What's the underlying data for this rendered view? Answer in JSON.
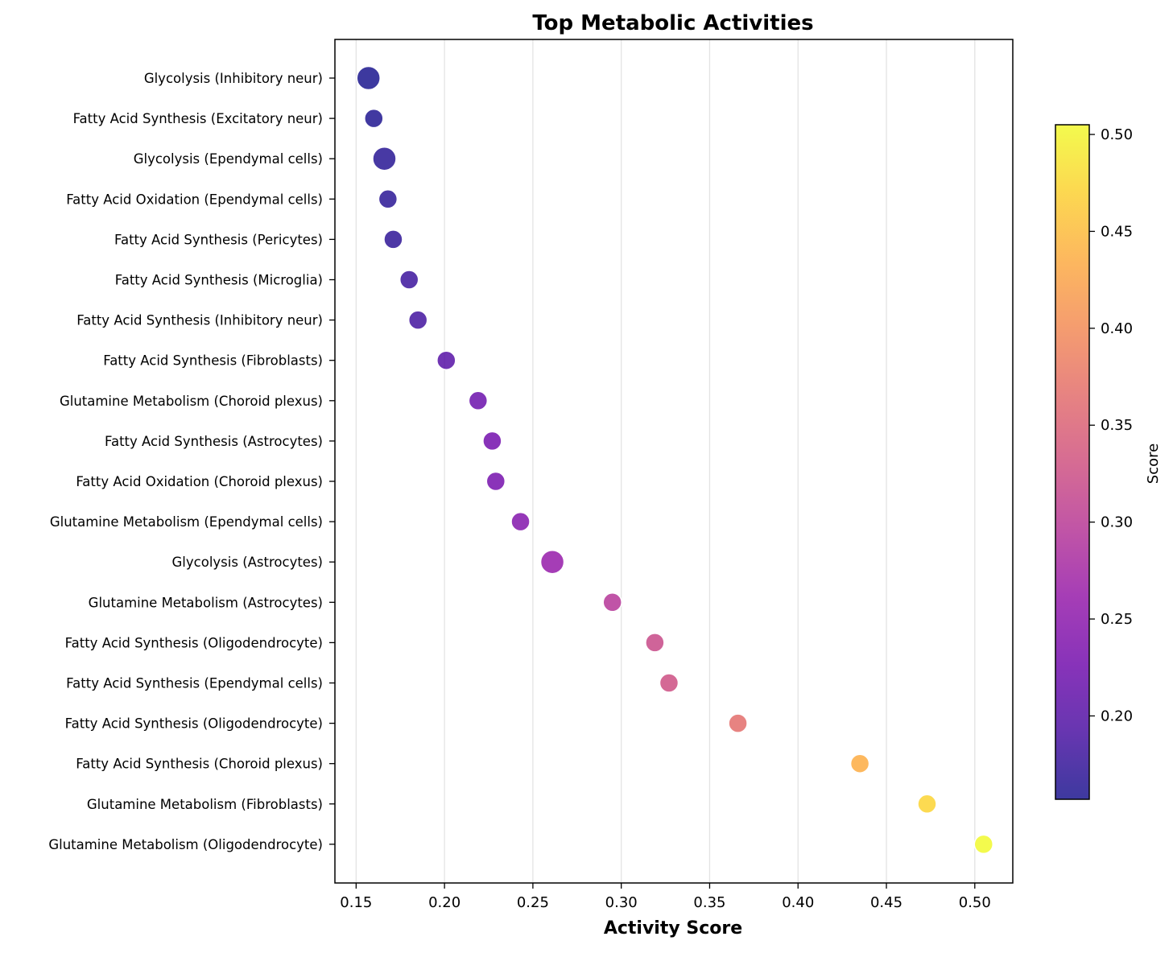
{
  "chart_data": {
    "type": "scatter",
    "title": "Top Metabolic Activities",
    "xlabel": "Activity Score",
    "xlim": [
      0.138,
      0.5215
    ],
    "xticks": [
      0.15,
      0.2,
      0.25,
      0.3,
      0.35,
      0.4,
      0.45,
      0.5
    ],
    "xtick_labels": [
      "0.15",
      "0.20",
      "0.25",
      "0.30",
      "0.35",
      "0.40",
      "0.45",
      "0.50"
    ],
    "grid": "vertical",
    "colormap": "plasma",
    "colorbar": {
      "label": "Score",
      "range": [
        0.157,
        0.505
      ],
      "ticks": [
        0.2,
        0.25,
        0.3,
        0.35,
        0.4,
        0.45,
        0.5
      ],
      "tick_labels": [
        "0.20",
        "0.25",
        "0.30",
        "0.35",
        "0.40",
        "0.45",
        "0.50"
      ]
    },
    "points": [
      {
        "label": "Glycolysis (Inhibitory neur)",
        "x": 0.157,
        "size": "large"
      },
      {
        "label": "Fatty Acid Synthesis (Excitatory neur)",
        "x": 0.16,
        "size": "medium"
      },
      {
        "label": "Glycolysis (Ependymal cells)",
        "x": 0.166,
        "size": "large"
      },
      {
        "label": "Fatty Acid Oxidation (Ependymal cells)",
        "x": 0.168,
        "size": "medium"
      },
      {
        "label": "Fatty Acid Synthesis (Pericytes)",
        "x": 0.171,
        "size": "medium"
      },
      {
        "label": "Fatty Acid Synthesis (Microglia)",
        "x": 0.18,
        "size": "medium"
      },
      {
        "label": "Fatty Acid Synthesis (Inhibitory neur)",
        "x": 0.185,
        "size": "medium"
      },
      {
        "label": "Fatty Acid Synthesis (Fibroblasts)",
        "x": 0.201,
        "size": "medium"
      },
      {
        "label": "Glutamine Metabolism (Choroid plexus)",
        "x": 0.219,
        "size": "medium"
      },
      {
        "label": "Fatty Acid Synthesis (Astrocytes)",
        "x": 0.227,
        "size": "medium"
      },
      {
        "label": "Fatty Acid Oxidation (Choroid plexus)",
        "x": 0.229,
        "size": "medium"
      },
      {
        "label": "Glutamine Metabolism (Ependymal cells)",
        "x": 0.243,
        "size": "medium"
      },
      {
        "label": "Glycolysis (Astrocytes)",
        "x": 0.261,
        "size": "large"
      },
      {
        "label": "Glutamine Metabolism (Astrocytes)",
        "x": 0.295,
        "size": "medium"
      },
      {
        "label": "Fatty Acid Synthesis (Oligodendrocyte)",
        "x": 0.319,
        "size": "medium"
      },
      {
        "label": "Fatty Acid Synthesis (Ependymal cells)",
        "x": 0.327,
        "size": "medium"
      },
      {
        "label": "Fatty Acid Synthesis (Oligodendrocyte)",
        "x": 0.366,
        "size": "medium"
      },
      {
        "label": "Fatty Acid Synthesis (Choroid plexus)",
        "x": 0.435,
        "size": "medium"
      },
      {
        "label": "Glutamine Metabolism (Fibroblasts)",
        "x": 0.473,
        "size": "medium"
      },
      {
        "label": "Glutamine Metabolism (Oligodendrocyte)",
        "x": 0.505,
        "size": "medium"
      }
    ]
  }
}
